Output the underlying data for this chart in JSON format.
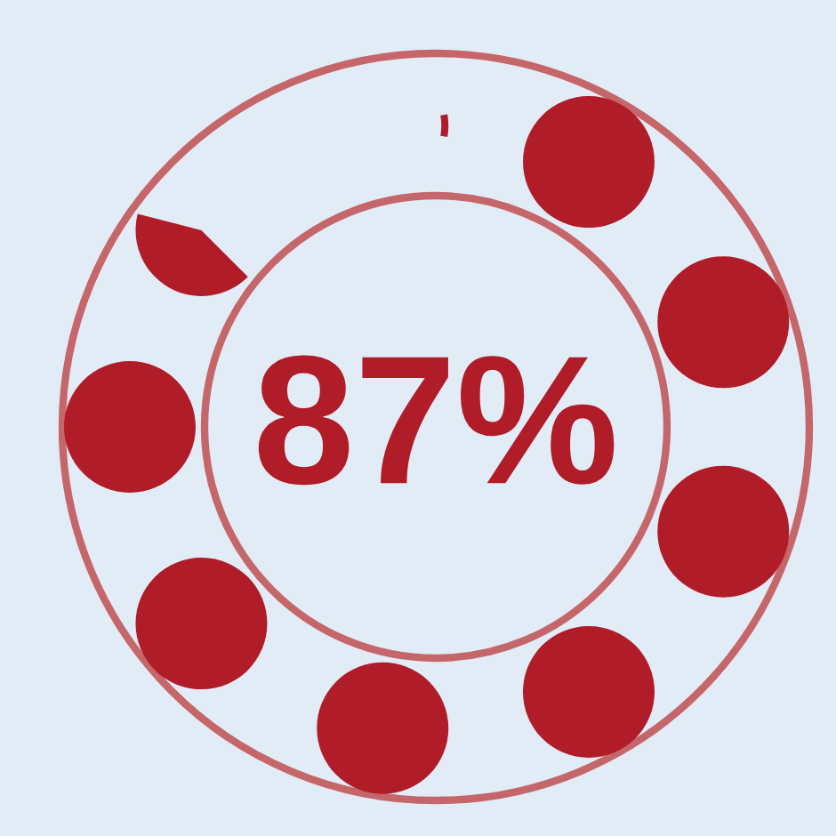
{
  "chart_data": {
    "type": "other",
    "values": [
      87
    ],
    "value_labels": [
      "87%"
    ],
    "color": "#b01c28"
  }
}
